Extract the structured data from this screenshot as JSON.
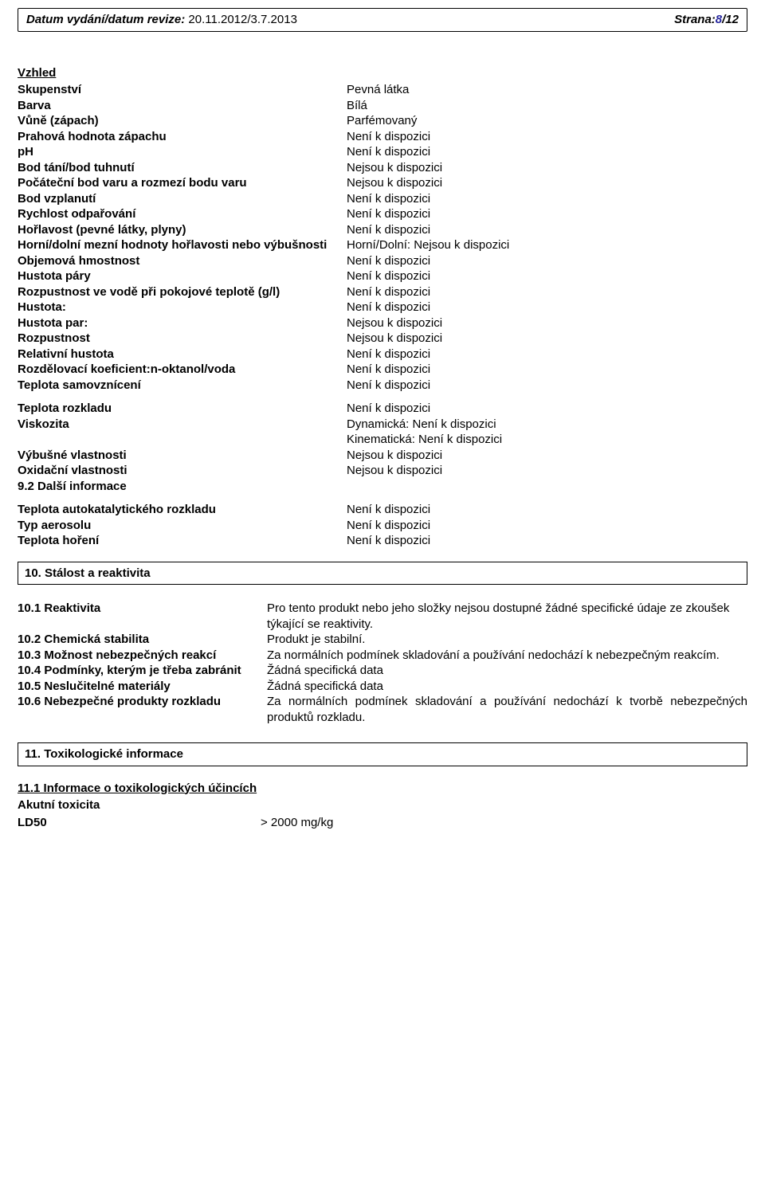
{
  "header": {
    "datum_label": "Datum vydání/datum revize:",
    "datum_value": "20.11.2012/3.7.2013",
    "strana_label": "Strana:",
    "page_cur": "8",
    "page_tot": "/12"
  },
  "vzhled_heading": "Vzhled",
  "props": [
    {
      "l": "Skupenství",
      "v": "Pevná látka"
    },
    {
      "l": "Barva",
      "v": "Bílá"
    },
    {
      "l": "Vůně (zápach)",
      "v": "Parfémovaný"
    },
    {
      "l": "Prahová hodnota zápachu",
      "v": "Není k dispozici"
    },
    {
      "l": "pH",
      "v": "Není k dispozici"
    },
    {
      "l": "Bod tání/bod tuhnutí",
      "v": "Nejsou k dispozici"
    },
    {
      "l": "Počáteční bod varu a rozmezí bodu varu",
      "v": "Nejsou k dispozici"
    },
    {
      "l": "Bod vzplanutí",
      "v": "Není k dispozici"
    },
    {
      "l": "Rychlost odpařování",
      "v": "Není k dispozici"
    },
    {
      "l": "Hořlavost (pevné látky, plyny)",
      "v": "Není k dispozici"
    },
    {
      "l": "Horní/dolní mezní hodnoty hořlavosti nebo výbušnosti",
      "v": "Horní/Dolní: Nejsou k dispozici"
    },
    {
      "l": "Objemová hmostnost",
      "v": "Není k dispozici"
    },
    {
      "l": "Hustota páry",
      "v": "Není k dispozici"
    },
    {
      "l": "Rozpustnost ve vodě při pokojové teplotě (g/l)",
      "v": "Není k dispozici"
    },
    {
      "l": "Hustota:",
      "v": "Není k dispozici"
    },
    {
      "l": "Hustota par:",
      "v": "Nejsou k dispozici"
    },
    {
      "l": "Rozpustnost",
      "v": "Nejsou k dispozici"
    },
    {
      "l": "Relativní hustota",
      "v": "Není k dispozici"
    },
    {
      "l": "Rozdělovací koeficient:n-oktanol/voda",
      "v": "Není k dispozici"
    },
    {
      "l": "Teplota samovznícení",
      "v": "Není k dispozici"
    }
  ],
  "props2": [
    {
      "l": "Teplota rozkladu",
      "v": "Není k dispozici"
    },
    {
      "l": "Viskozita",
      "v": "Dynamická: Není k dispozici"
    },
    {
      "l": "",
      "v": "Kinematická: Není k dispozici"
    },
    {
      "l": "Výbušné vlastnosti",
      "v": "Nejsou k dispozici"
    },
    {
      "l": "Oxidační vlastnosti",
      "v": "Nejsou k dispozici"
    }
  ],
  "sec92": "9.2 Další informace",
  "props3": [
    {
      "l": "Teplota autokatalytického rozkladu",
      "v": "Není k dispozici"
    },
    {
      "l": "Typ aerosolu",
      "v": "Není k dispozici"
    },
    {
      "l": "Teplota hoření",
      "v": "Není k dispozici"
    }
  ],
  "sec10_title": "10. Stálost a reaktivita",
  "sec10": [
    {
      "l": "10.1 Reaktivita",
      "v": "Pro tento produkt nebo jeho složky nejsou dostupné žádné specifické údaje ze zkoušek týkající se reaktivity."
    },
    {
      "l": "10.2 Chemická stabilita",
      "v": "Produkt je stabilní."
    },
    {
      "l": "10.3 Možnost nebezpečných reakcí",
      "v": "Za normálních podmínek skladování a používání nedochází k nebezpečným reakcím."
    },
    {
      "l": "10.4 Podmínky, kterým je třeba zabránit",
      "v": "Žádná specifická data"
    },
    {
      "l": "10.5 Neslučitelné materiály",
      "v": "Žádná specifická data"
    },
    {
      "l": "10.6 Nebezpečné produkty rozkladu",
      "v": "Za normálních podmínek skladování a používání nedochází k tvorbě nebezpečných produktů rozkladu.",
      "just": true
    }
  ],
  "sec11_title": "11. Toxikologické informace",
  "sec11_sub": "11.1 Informace o toxikologických účincích",
  "sec11_row": {
    "l": "Akutní toxicita",
    "l2": "LD50",
    "v": ">   2000 mg/kg"
  }
}
